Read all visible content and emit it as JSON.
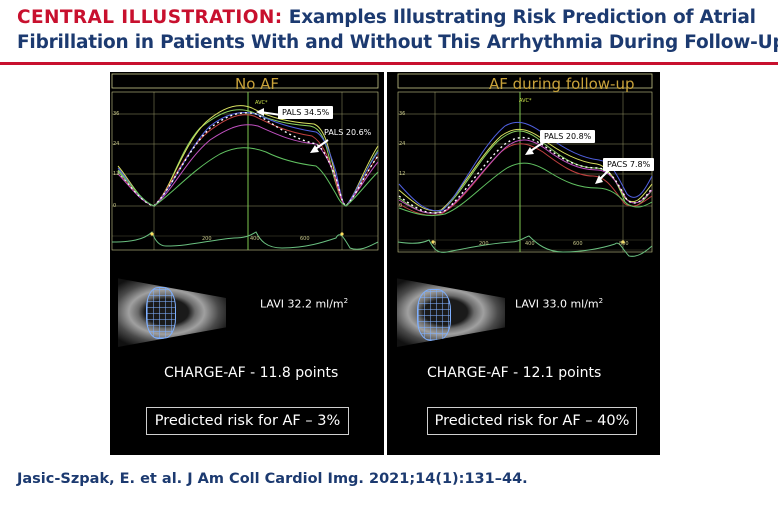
{
  "header": {
    "label": "CENTRAL ILLUSTRATION:",
    "title_line1": "Examples Illustrating Risk Prediction of Atrial",
    "title_line2": "Fibrillation in Patients With and Without This Arrhythmia During Follow-Up"
  },
  "panels": {
    "left": {
      "title": "No AF",
      "avc_label": "AVC*",
      "y_ticks": [
        "36",
        "24",
        "12",
        "0"
      ],
      "x_ticks": [
        "200",
        "400",
        "600"
      ],
      "annotations": [
        "PALS 34.5%",
        "PALS 20.6%"
      ],
      "lavi": "LAVI 32.2 ml/m",
      "lavi_sup": "2",
      "charge_af": "CHARGE-AF - 11.8 points",
      "predicted_risk": "Predicted risk for AF – 3%"
    },
    "right": {
      "title": "AF during follow-up",
      "avc_label": "AVC*",
      "y_ticks": [
        "36",
        "24",
        "12",
        "0"
      ],
      "x_ticks": [
        "0",
        "200",
        "400",
        "600",
        "800"
      ],
      "annotations": [
        "PALS 20.8%",
        "PACS 7.8%"
      ],
      "lavi": "LAVI 33.0 ml/m",
      "lavi_sup": "2",
      "charge_af": "CHARGE-AF - 12.1 points",
      "predicted_risk": "Predicted risk for AF – 40%"
    }
  },
  "colors": {
    "header_navy": "#1c3a70",
    "header_red": "#c8102e",
    "panel_bg": "#000000",
    "title_gold": "#c8a23a",
    "grid": "#c8c88a",
    "avc_line": "#7ec850"
  },
  "citation": "Jasic-Szpak, E. et al. J Am Coll Cardiol Img. 2021;14(1):131–44."
}
